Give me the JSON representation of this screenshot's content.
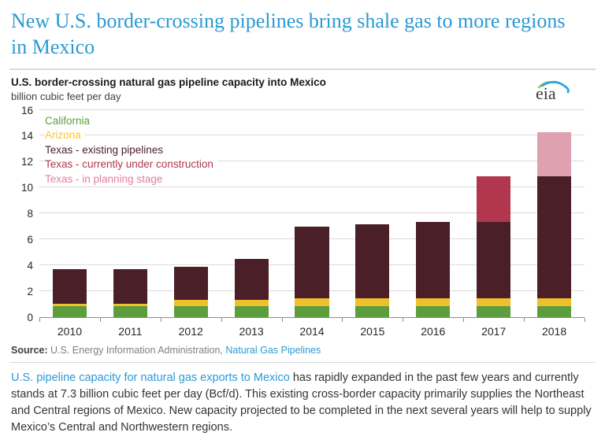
{
  "page": {
    "headline": "New U.S. border-crossing pipelines bring shale gas to more regions in Mexico"
  },
  "chart": {
    "title": "U.S. border-crossing natural gas pipeline capacity into Mexico",
    "subtitle": "billion cubic feet per day",
    "logo_text": "eia"
  },
  "chart_data": {
    "type": "bar",
    "stacked": true,
    "title": "U.S. border-crossing natural gas pipeline capacity into Mexico",
    "xlabel": "",
    "ylabel": "billion cubic feet per day",
    "ylim": [
      0,
      16
    ],
    "ytick_step": 2,
    "grid": true,
    "legend_position": "top-left",
    "categories": [
      "2010",
      "2011",
      "2012",
      "2013",
      "2014",
      "2015",
      "2016",
      "2017",
      "2018"
    ],
    "series": [
      {
        "name": "California",
        "color": "#5C9E3D",
        "legend_color": "#5B9E3C",
        "values": [
          0.8,
          0.8,
          0.8,
          0.8,
          0.8,
          0.8,
          0.8,
          0.8,
          0.8
        ]
      },
      {
        "name": "Arizona",
        "color": "#EFBF2D",
        "legend_color": "#FFC427",
        "values": [
          0.2,
          0.2,
          0.5,
          0.5,
          0.65,
          0.65,
          0.65,
          0.65,
          0.65
        ]
      },
      {
        "name": "Texas - existing pipelines",
        "color": "#4A1F28",
        "legend_color": "#4A1F28",
        "values": [
          2.65,
          2.65,
          2.55,
          3.15,
          5.5,
          5.65,
          5.85,
          5.85,
          9.35
        ]
      },
      {
        "name": "Texas - currently under construction",
        "color": "#B2364D",
        "legend_color": "#B2364D",
        "values": [
          0,
          0,
          0,
          0,
          0,
          0,
          0,
          3.5,
          0
        ]
      },
      {
        "name": "Texas - in planning stage",
        "color": "#DFA1AF",
        "legend_color": "#E2809A",
        "values": [
          0,
          0,
          0,
          0,
          0,
          0,
          0,
          0,
          3.4
        ]
      }
    ],
    "totals": [
      3.65,
      3.65,
      3.85,
      4.45,
      6.95,
      7.1,
      7.3,
      10.8,
      14.2
    ]
  },
  "source": {
    "label": "Source:",
    "text": " U.S. Energy Information Administration, ",
    "link": "Natural Gas Pipelines"
  },
  "caption": {
    "link": "U.S. pipeline capacity for natural gas exports to Mexico",
    "text": " has rapidly expanded in the past few years and currently stands at 7.3 billion cubic feet per day (Bcf/d). This existing cross-border capacity primarily supplies the Northeast and Central regions of Mexico. New capacity projected to be completed in the next several years will help to supply Mexico’s Central and Northwestern regions."
  }
}
